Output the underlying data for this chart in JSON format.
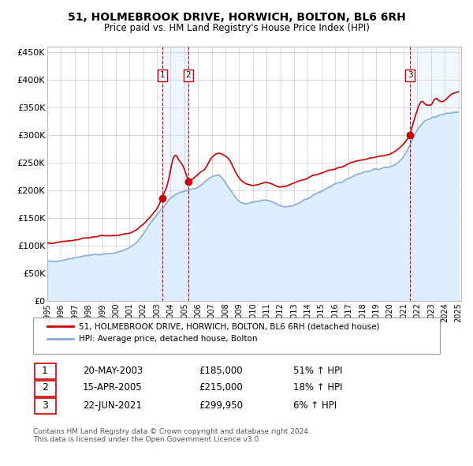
{
  "title": "51, HOLMEBROOK DRIVE, HORWICH, BOLTON, BL6 6RH",
  "subtitle": "Price paid vs. HM Land Registry's House Price Index (HPI)",
  "ylim": [
    0,
    460000
  ],
  "yticks": [
    0,
    50000,
    100000,
    150000,
    200000,
    250000,
    300000,
    350000,
    400000,
    450000
  ],
  "ytick_labels": [
    "£0",
    "£50K",
    "£100K",
    "£150K",
    "£200K",
    "£250K",
    "£300K",
    "£350K",
    "£400K",
    "£450K"
  ],
  "sale_color": "#cc0000",
  "hpi_color": "#88aadd",
  "hpi_fill_color": "#ddeeff",
  "annotations": [
    {
      "num": 1,
      "x": 2003.38,
      "price": 185000,
      "date_str": "20-MAY-2003",
      "price_str": "£185,000",
      "pct": "51% ↑ HPI"
    },
    {
      "num": 2,
      "x": 2005.29,
      "price": 215000,
      "date_str": "15-APR-2005",
      "price_str": "£215,000",
      "pct": "18% ↑ HPI"
    },
    {
      "num": 3,
      "x": 2021.47,
      "price": 299950,
      "date_str": "22-JUN-2021",
      "price_str": "£299,950",
      "pct": "6% ↑ HPI"
    }
  ],
  "legend_label_sale": "51, HOLMEBROOK DRIVE, HORWICH, BOLTON, BL6 6RH (detached house)",
  "legend_label_hpi": "HPI: Average price, detached house, Bolton",
  "footnote": "Contains HM Land Registry data © Crown copyright and database right 2024.\nThis data is licensed under the Open Government Licence v3.0.",
  "background_color": "#ffffff",
  "plot_bg_color": "#ffffff",
  "grid_color": "#cccccc",
  "hpi_data": [
    [
      1995.0,
      70000
    ],
    [
      1995.5,
      71000
    ],
    [
      1996.0,
      73000
    ],
    [
      1996.5,
      75000
    ],
    [
      1997.0,
      78000
    ],
    [
      1997.5,
      80000
    ],
    [
      1998.0,
      82000
    ],
    [
      1998.5,
      83000
    ],
    [
      1999.0,
      84000
    ],
    [
      1999.5,
      85000
    ],
    [
      2000.0,
      87000
    ],
    [
      2000.5,
      90000
    ],
    [
      2001.0,
      95000
    ],
    [
      2001.5,
      105000
    ],
    [
      2002.0,
      120000
    ],
    [
      2002.5,
      140000
    ],
    [
      2003.0,
      155000
    ],
    [
      2003.5,
      170000
    ],
    [
      2004.0,
      185000
    ],
    [
      2004.5,
      195000
    ],
    [
      2005.0,
      198000
    ],
    [
      2005.5,
      200000
    ],
    [
      2006.0,
      205000
    ],
    [
      2006.5,
      215000
    ],
    [
      2007.0,
      225000
    ],
    [
      2007.5,
      228000
    ],
    [
      2008.0,
      215000
    ],
    [
      2008.5,
      195000
    ],
    [
      2009.0,
      178000
    ],
    [
      2009.5,
      175000
    ],
    [
      2010.0,
      178000
    ],
    [
      2010.5,
      180000
    ],
    [
      2011.0,
      182000
    ],
    [
      2011.5,
      178000
    ],
    [
      2012.0,
      172000
    ],
    [
      2012.5,
      170000
    ],
    [
      2013.0,
      172000
    ],
    [
      2013.5,
      178000
    ],
    [
      2014.0,
      185000
    ],
    [
      2014.5,
      192000
    ],
    [
      2015.0,
      198000
    ],
    [
      2015.5,
      205000
    ],
    [
      2016.0,
      210000
    ],
    [
      2016.5,
      215000
    ],
    [
      2017.0,
      222000
    ],
    [
      2017.5,
      228000
    ],
    [
      2018.0,
      232000
    ],
    [
      2018.5,
      235000
    ],
    [
      2019.0,
      238000
    ],
    [
      2019.5,
      240000
    ],
    [
      2020.0,
      242000
    ],
    [
      2020.5,
      248000
    ],
    [
      2021.0,
      260000
    ],
    [
      2021.5,
      285000
    ],
    [
      2022.0,
      310000
    ],
    [
      2022.5,
      325000
    ],
    [
      2023.0,
      330000
    ],
    [
      2023.5,
      335000
    ],
    [
      2024.0,
      338000
    ],
    [
      2024.5,
      340000
    ],
    [
      2025.0,
      342000
    ]
  ],
  "red_data": [
    [
      1995.0,
      103000
    ],
    [
      1995.5,
      104000
    ],
    [
      1996.0,
      106000
    ],
    [
      1996.5,
      108000
    ],
    [
      1997.0,
      110000
    ],
    [
      1997.5,
      112000
    ],
    [
      1998.0,
      114000
    ],
    [
      1998.5,
      116000
    ],
    [
      1999.0,
      118000
    ],
    [
      1999.5,
      117000
    ],
    [
      2000.0,
      118000
    ],
    [
      2000.5,
      120000
    ],
    [
      2001.0,
      122000
    ],
    [
      2001.5,
      128000
    ],
    [
      2002.0,
      138000
    ],
    [
      2002.5,
      152000
    ],
    [
      2003.0,
      165000
    ],
    [
      2003.38,
      185000
    ],
    [
      2003.8,
      210000
    ],
    [
      2004.0,
      240000
    ],
    [
      2004.3,
      268000
    ],
    [
      2004.6,
      255000
    ],
    [
      2005.0,
      240000
    ],
    [
      2005.29,
      215000
    ],
    [
      2005.6,
      220000
    ],
    [
      2006.0,
      228000
    ],
    [
      2006.5,
      238000
    ],
    [
      2007.0,
      260000
    ],
    [
      2007.5,
      268000
    ],
    [
      2008.0,
      262000
    ],
    [
      2008.3,
      255000
    ],
    [
      2008.6,
      240000
    ],
    [
      2009.0,
      220000
    ],
    [
      2009.5,
      210000
    ],
    [
      2010.0,
      208000
    ],
    [
      2010.5,
      210000
    ],
    [
      2011.0,
      215000
    ],
    [
      2011.5,
      210000
    ],
    [
      2012.0,
      205000
    ],
    [
      2012.5,
      208000
    ],
    [
      2013.0,
      212000
    ],
    [
      2013.5,
      218000
    ],
    [
      2014.0,
      222000
    ],
    [
      2014.5,
      228000
    ],
    [
      2015.0,
      230000
    ],
    [
      2015.5,
      235000
    ],
    [
      2016.0,
      238000
    ],
    [
      2016.5,
      242000
    ],
    [
      2017.0,
      248000
    ],
    [
      2017.5,
      252000
    ],
    [
      2018.0,
      255000
    ],
    [
      2018.5,
      258000
    ],
    [
      2019.0,
      260000
    ],
    [
      2019.5,
      262000
    ],
    [
      2020.0,
      265000
    ],
    [
      2020.5,
      272000
    ],
    [
      2021.0,
      282000
    ],
    [
      2021.47,
      299950
    ],
    [
      2021.8,
      330000
    ],
    [
      2022.0,
      345000
    ],
    [
      2022.3,
      365000
    ],
    [
      2022.6,
      355000
    ],
    [
      2023.0,
      352000
    ],
    [
      2023.3,
      368000
    ],
    [
      2023.6,
      360000
    ],
    [
      2024.0,
      362000
    ],
    [
      2024.5,
      375000
    ],
    [
      2025.0,
      378000
    ]
  ]
}
